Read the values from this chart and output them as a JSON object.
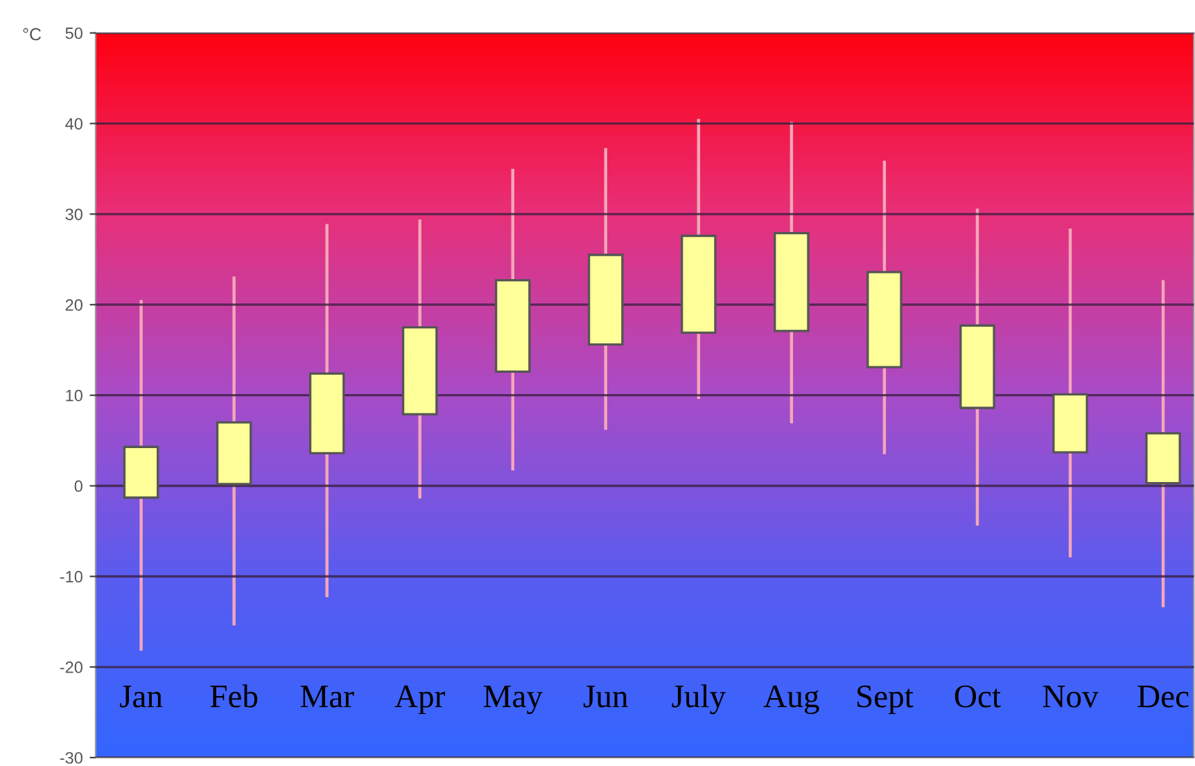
{
  "chart_data": {
    "type": "bar",
    "ylabel": "°C",
    "categories": [
      "Jan",
      "Feb",
      "Mar",
      "Apr",
      "May",
      "Jun",
      "July",
      "Aug",
      "Sept",
      "Oct",
      "Nov",
      "Dec"
    ],
    "base": [
      -1.3,
      0.2,
      3.6,
      7.9,
      12.6,
      15.6,
      16.9,
      17.1,
      13.1,
      8.6,
      3.7,
      0.3
    ],
    "values": [
      5.6,
      6.8,
      8.8,
      9.6,
      10.1,
      9.9,
      10.7,
      10.8,
      10.5,
      9.1,
      6.4,
      5.5
    ],
    "errors": [
      [
        -18.2,
        20.5
      ],
      [
        -15.4,
        23.1
      ],
      [
        -12.3,
        28.9
      ],
      [
        -1.4,
        29.4
      ],
      [
        1.7,
        35.0
      ],
      [
        6.2,
        37.3
      ],
      [
        9.6,
        40.5
      ],
      [
        6.9,
        40.2
      ],
      [
        3.5,
        35.9
      ],
      [
        -4.4,
        30.6
      ],
      [
        -7.9,
        28.4
      ],
      [
        -13.4,
        22.7
      ]
    ],
    "color": "#ffff99",
    "ylim": [
      -30,
      50
    ],
    "yticks": [
      -30,
      -20,
      -10,
      0,
      10,
      20,
      30,
      40,
      50
    ],
    "grid": "y",
    "legend": false
  }
}
